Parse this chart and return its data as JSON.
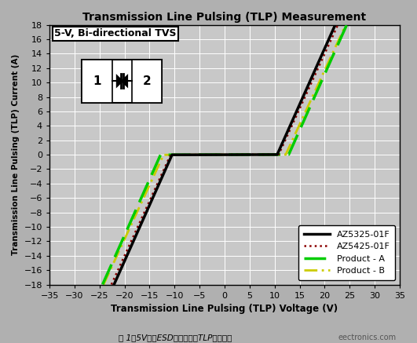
{
  "title": "Transmission Line Pulsing (TLP) Measurement",
  "xlabel": "Transmission Line Pulsing (TLP) Voltage (V)",
  "ylabel": "Transmission Line Pulsing (TLP) Current (A)",
  "xlim": [
    -35,
    35
  ],
  "ylim": [
    -18,
    18
  ],
  "xticks": [
    -35,
    -30,
    -25,
    -20,
    -15,
    -10,
    -5,
    0,
    5,
    10,
    15,
    20,
    25,
    30,
    35
  ],
  "yticks": [
    -18,
    -16,
    -14,
    -12,
    -10,
    -8,
    -6,
    -4,
    -2,
    0,
    2,
    4,
    6,
    8,
    10,
    12,
    14,
    16,
    18
  ],
  "annotation_title": "5-V, Bi-directional TVS",
  "subtitle": "图 1：5V双向ESD保护组件的TLP测试曲线",
  "watermark": "eectronics.com",
  "fig_bg_color": "#b0b0b0",
  "plot_bg_color": "#c8c8c8",
  "grid_color": "#ffffff",
  "legend_entries": [
    "AZ5325-01F",
    "AZ5425-01F",
    "Product - A",
    "Product - B"
  ],
  "line_colors": [
    "#000000",
    "#8b0000",
    "#00cc00",
    "#cccc00"
  ],
  "az5325_vt": 10.5,
  "az5325_slope": 1.55,
  "az5425_vt": 10.8,
  "az5425_slope": 1.52,
  "prodA_vt": 12.8,
  "prodA_slope": 1.55,
  "prodB_vt": 12.2,
  "prodB_slope": 1.5
}
